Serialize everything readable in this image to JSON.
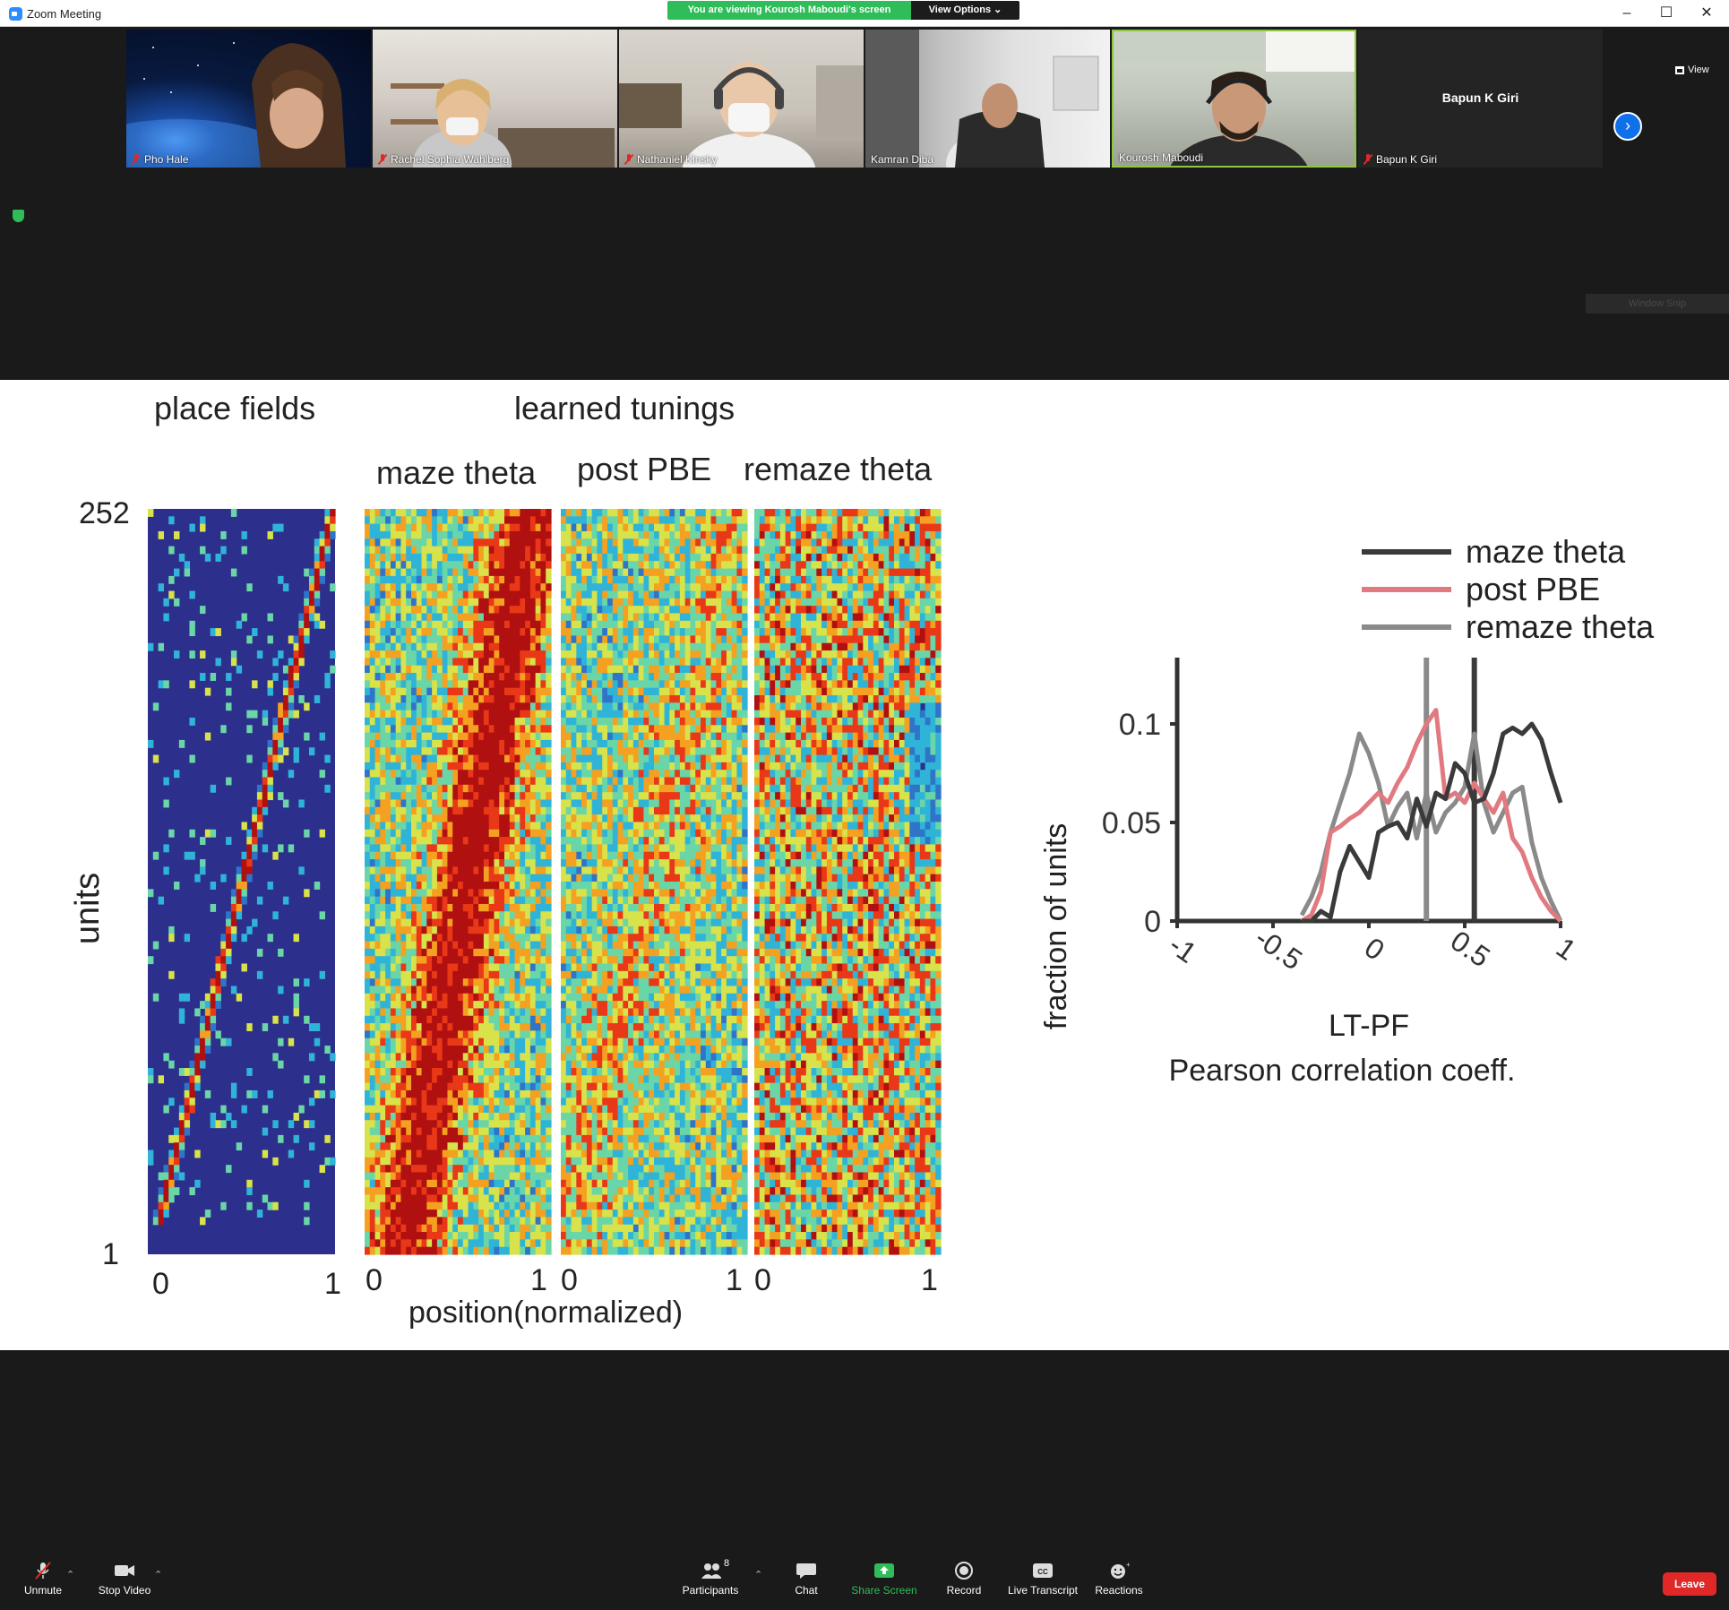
{
  "window": {
    "title": "Zoom Meeting",
    "share_banner": "You are viewing Kourosh Maboudi's screen",
    "view_options": "View Options ⌄",
    "minimize": "–",
    "maximize": "☐",
    "close": "✕"
  },
  "participants": [
    {
      "name": "Pho Hale",
      "muted": true
    },
    {
      "name": "Rachel Sophia Wahlberg",
      "muted": true
    },
    {
      "name": "Nathaniel Kinsky",
      "muted": true
    },
    {
      "name": "Kamran Diba",
      "muted": false
    },
    {
      "name": "Kourosh Maboudi",
      "muted": false,
      "active_speaker": true
    },
    {
      "name": "Bapun K Giri",
      "muted": true,
      "video_off": true
    }
  ],
  "strip": {
    "view_label": "View",
    "next_page": "›",
    "window_snip": "Window Snip"
  },
  "slide": {
    "heading_place_fields": "place fields",
    "heading_learned_tunings": "learned tunings",
    "panel_titles": [
      "maze theta",
      "post PBE",
      "remaze theta"
    ],
    "units_label": "units",
    "units_top": "252",
    "units_bottom": "1",
    "x_ticks": [
      "0",
      "1",
      "0",
      "1",
      "0",
      "1",
      "0",
      "1"
    ],
    "position_label": "position(normalized)",
    "heatmap_colors": [
      "#2d2f8c",
      "#2f74c8",
      "#2fb4d8",
      "#6ad6a8",
      "#d8e24a",
      "#f4a020",
      "#e83818",
      "#b01010"
    ]
  },
  "chart_data": {
    "type": "line",
    "title": "",
    "xlabel": "LT-PF\nPearson correlation coeff.",
    "xlabel_line1": "LT-PF",
    "xlabel_line2": "Pearson correlation coeff.",
    "ylabel": "fraction of units",
    "xlim": [
      -1,
      1
    ],
    "ylim": [
      0,
      0.12
    ],
    "x_ticks": [
      -1,
      -0.5,
      0,
      0.5,
      1
    ],
    "x_tick_labels": [
      "-1",
      "-0.5",
      "0",
      "0.5",
      "1"
    ],
    "y_ticks": [
      0,
      0.05,
      0.1
    ],
    "y_tick_labels": [
      "0",
      "0.05",
      "0.1"
    ],
    "legend_position": "top-right",
    "x": [
      -0.35,
      -0.3,
      -0.25,
      -0.2,
      -0.15,
      -0.1,
      -0.05,
      0.0,
      0.05,
      0.1,
      0.15,
      0.2,
      0.25,
      0.3,
      0.35,
      0.4,
      0.45,
      0.5,
      0.55,
      0.6,
      0.65,
      0.7,
      0.75,
      0.8,
      0.85,
      0.9,
      0.95,
      1.0
    ],
    "series": [
      {
        "name": "maze theta",
        "color": "#3a3a3a",
        "values": [
          0,
          0,
          0.005,
          0.002,
          0.025,
          0.038,
          0.03,
          0.022,
          0.045,
          0.048,
          0.05,
          0.042,
          0.062,
          0.048,
          0.065,
          0.062,
          0.08,
          0.075,
          0.06,
          0.062,
          0.075,
          0.095,
          0.098,
          0.095,
          0.1,
          0.092,
          0.075,
          0.06
        ]
      },
      {
        "name": "post PBE",
        "color": "#e07a80",
        "values": [
          0,
          0.003,
          0.015,
          0.045,
          0.048,
          0.052,
          0.055,
          0.06,
          0.065,
          0.06,
          0.07,
          0.078,
          0.09,
          0.1,
          0.107,
          0.062,
          0.065,
          0.06,
          0.07,
          0.062,
          0.055,
          0.065,
          0.042,
          0.035,
          0.022,
          0.012,
          0.005,
          0
        ]
      },
      {
        "name": "remaze theta",
        "color": "#8a8a8a",
        "values": [
          0.003,
          0.012,
          0.025,
          0.045,
          0.06,
          0.075,
          0.095,
          0.085,
          0.07,
          0.048,
          0.058,
          0.065,
          0.042,
          0.065,
          0.045,
          0.055,
          0.06,
          0.068,
          0.095,
          0.06,
          0.045,
          0.055,
          0.065,
          0.068,
          0.04,
          0.022,
          0.01,
          0
        ]
      }
    ],
    "vlines": [
      {
        "x": 0.3,
        "color": "#8a8a8a"
      },
      {
        "x": 0.55,
        "color": "#3a3a3a"
      }
    ]
  },
  "toolbar": {
    "unmute": "Unmute",
    "stop_video": "Stop Video",
    "participants": "Participants",
    "participants_count": "8",
    "chat": "Chat",
    "share_screen": "Share Screen",
    "record": "Record",
    "live_transcript": "Live Transcript",
    "reactions": "Reactions",
    "leave": "Leave",
    "caret": "⌃"
  }
}
